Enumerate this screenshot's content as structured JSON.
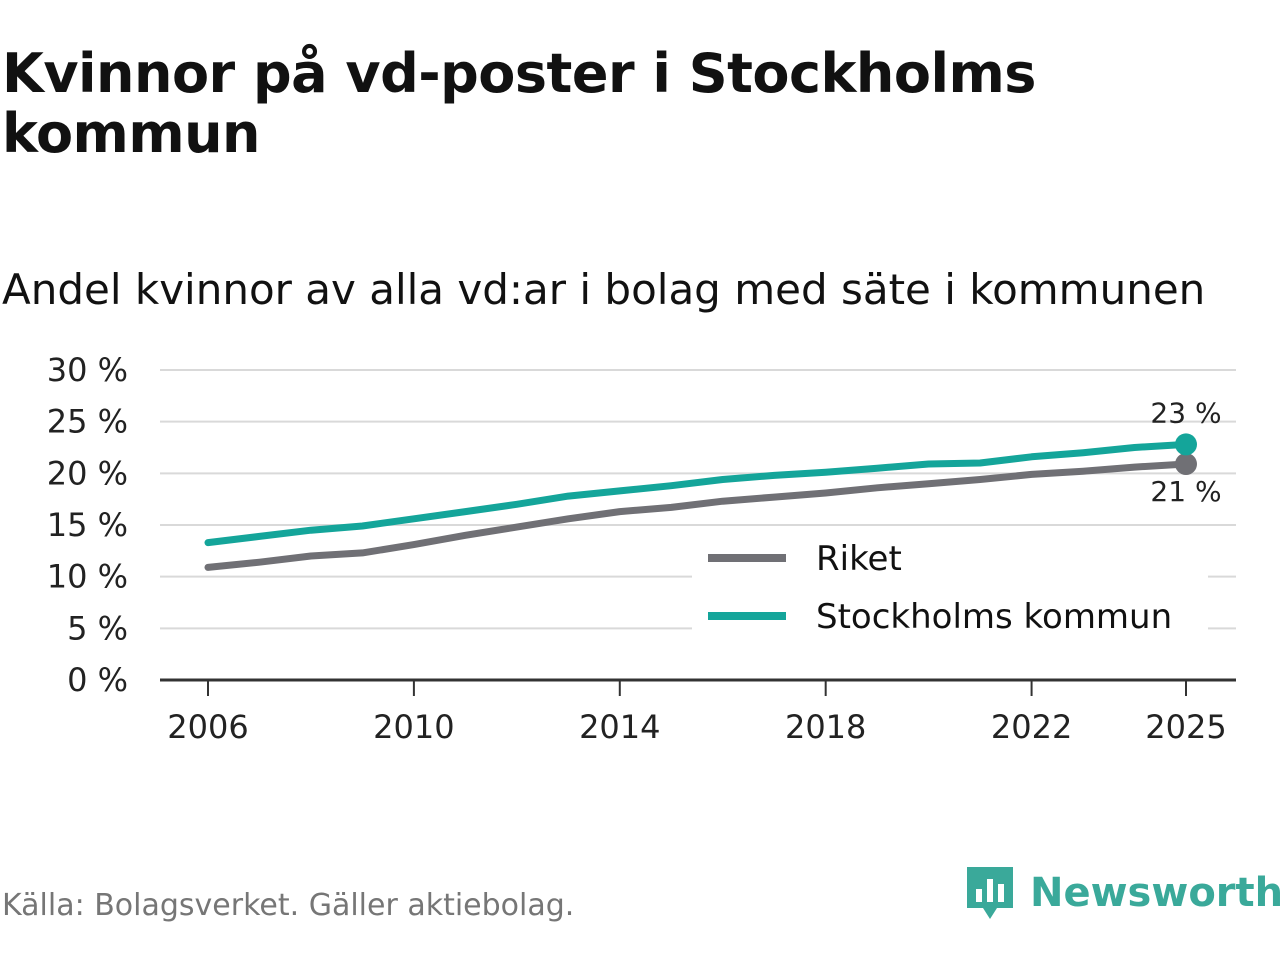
{
  "header": {
    "title": "Kvinnor på vd-poster i Stockholms kommun",
    "subtitle": "Andel kvinnor av alla vd:ar i bolag med säte i kommunen"
  },
  "footer": {
    "source": "Källa: Bolagsverket. Gäller aktiebolag.",
    "brand": "Newsworthy"
  },
  "colors": {
    "riket": "#707075",
    "stockholm": "#14a59a",
    "grid": "#d9d9d9",
    "brand": "#3aa99a"
  },
  "chart_data": {
    "type": "line",
    "title": "Kvinnor på vd-poster i Stockholms kommun",
    "subtitle": "Andel kvinnor av alla vd:ar i bolag med säte i kommunen",
    "xlabel": "",
    "ylabel": "",
    "ylim": [
      0,
      30
    ],
    "y_ticks": [
      0,
      5,
      10,
      15,
      20,
      25,
      30
    ],
    "y_tick_labels": [
      "0 %",
      "5 %",
      "10 %",
      "15 %",
      "20 %",
      "25 %",
      "30 %"
    ],
    "x_ticks": [
      2006,
      2010,
      2014,
      2018,
      2022,
      2025
    ],
    "x_tick_labels": [
      "2006",
      "2010",
      "2014",
      "2018",
      "2022",
      "2025"
    ],
    "grid": true,
    "legend_position": "bottom-right",
    "x": [
      2006,
      2007,
      2008,
      2009,
      2010,
      2011,
      2012,
      2013,
      2014,
      2015,
      2016,
      2017,
      2018,
      2019,
      2020,
      2021,
      2022,
      2023,
      2024,
      2025
    ],
    "series": [
      {
        "name": "Riket",
        "color": "#707075",
        "values": [
          10.9,
          11.4,
          12.0,
          12.3,
          13.1,
          14.0,
          14.8,
          15.6,
          16.3,
          16.7,
          17.3,
          17.7,
          18.1,
          18.6,
          19.0,
          19.4,
          19.9,
          20.2,
          20.6,
          20.9
        ],
        "end_label": "21 %"
      },
      {
        "name": "Stockholms kommun",
        "color": "#14a59a",
        "values": [
          13.3,
          13.9,
          14.5,
          14.9,
          15.6,
          16.3,
          17.0,
          17.8,
          18.3,
          18.8,
          19.4,
          19.8,
          20.1,
          20.5,
          20.9,
          21.0,
          21.6,
          22.0,
          22.5,
          22.8
        ],
        "end_label": "23 %"
      }
    ]
  }
}
